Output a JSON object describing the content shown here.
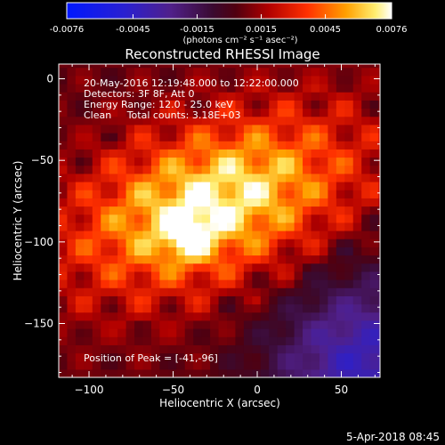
{
  "colorbar": {
    "ticks": [
      "-0.0076",
      "-0.0045",
      "-0.0015",
      "0.0015",
      "0.0045",
      "0.0076"
    ],
    "unit_label": "(photons cm⁻² s⁻¹ asec⁻²)"
  },
  "chart_data": {
    "type": "heatmap",
    "title": "Reconstructed RHESSI Image",
    "xlabel": "Heliocentric X (arcsec)",
    "ylabel": "Heliocentric Y (arcsec)",
    "xlim": [
      -118,
      73
    ],
    "ylim": [
      -183,
      9
    ],
    "xticks": [
      -100,
      -50,
      0,
      50
    ],
    "yticks": [
      0,
      -50,
      -100,
      -150
    ],
    "colorbar_range": [
      -0.0076,
      0.0076
    ],
    "colormap": "blue-purple-red-yellow-white",
    "info_lines": [
      "20-May-2016 12:19:48.000 to 12:22:00.000",
      "Detectors: 3F 8F, Att 0",
      "Energy Range: 12.0 - 25.0 keV",
      "Clean     Total counts: 3.18E+03"
    ],
    "peak_label": "Position of Peak = [-41,-96]",
    "peak": [
      -41,
      -96
    ]
  },
  "footer_date": "5-Apr-2018 08:45"
}
